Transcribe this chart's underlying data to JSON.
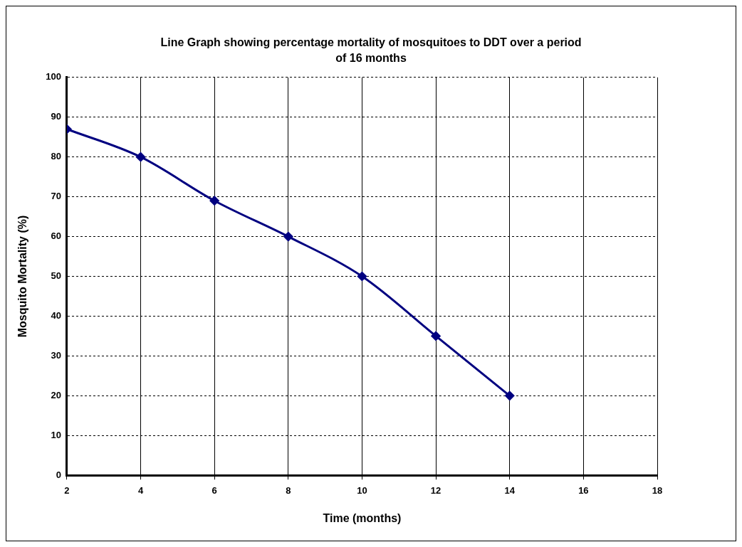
{
  "chart_data": {
    "type": "line",
    "title": "Line Graph showing percentage mortality of mosquitoes to DDT over a period of 16 months",
    "xlabel": "Time (months)",
    "ylabel": "Mosquito Mortality (%)",
    "x": [
      2,
      4,
      6,
      8,
      10,
      12,
      14
    ],
    "series": [
      {
        "color": "#000080",
        "values": [
          87,
          80,
          69,
          60,
          50,
          35,
          20
        ]
      }
    ],
    "xlim": [
      2,
      18
    ],
    "xticks": [
      2,
      4,
      6,
      8,
      10,
      12,
      14,
      16,
      18
    ],
    "ylim": [
      0,
      100
    ],
    "yticks": [
      0,
      10,
      20,
      30,
      40,
      50,
      60,
      70,
      80,
      90,
      100
    ],
    "grid": true,
    "legend": false,
    "marker": "diamond",
    "line_style": "solid"
  }
}
